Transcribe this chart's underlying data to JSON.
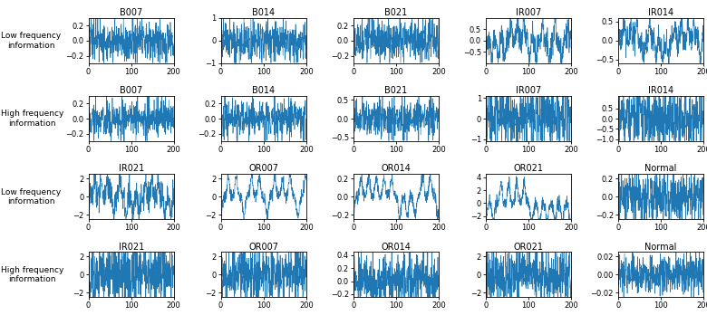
{
  "titles_row1": [
    "B007",
    "B014",
    "B021",
    "IR007",
    "IR014"
  ],
  "titles_row2": [
    "B007",
    "B014",
    "B021",
    "IR007",
    "IR014"
  ],
  "titles_row3": [
    "IR021",
    "OR007",
    "OR014",
    "OR021",
    "Normal"
  ],
  "titles_row4": [
    "IR021",
    "OR007",
    "OR014",
    "OR021",
    "Normal"
  ],
  "row_labels": [
    "Low frequency\ninformation",
    "High frequency\ninformation",
    "Low frequency\ninformation",
    "High frequency\ninformation"
  ],
  "ylims": [
    [
      [
        -0.3,
        0.3
      ],
      [
        -1.0,
        1.0
      ],
      [
        -0.3,
        0.3
      ],
      [
        -1.0,
        1.0
      ],
      [
        -0.6,
        0.6
      ]
    ],
    [
      [
        -0.3,
        0.3
      ],
      [
        -0.3,
        0.3
      ],
      [
        -0.6,
        0.6
      ],
      [
        -1.1,
        1.1
      ],
      [
        -1.1,
        1.1
      ]
    ],
    [
      [
        -2.5,
        2.5
      ],
      [
        -2.5,
        2.5
      ],
      [
        -0.25,
        0.25
      ],
      [
        -2.5,
        4.5
      ],
      [
        -0.25,
        0.25
      ]
    ],
    [
      [
        -2.5,
        2.5
      ],
      [
        -2.5,
        2.5
      ],
      [
        -0.25,
        0.45
      ],
      [
        -2.5,
        2.5
      ],
      [
        -0.025,
        0.025
      ]
    ]
  ],
  "yticks": [
    [
      [
        0.2,
        0,
        -0.2
      ],
      [
        1,
        0,
        -1
      ],
      [
        0.2,
        0,
        -0.2
      ],
      [
        0.5,
        0,
        -0.5
      ],
      [
        0.5,
        0,
        -0.5
      ]
    ],
    [
      [
        0.2,
        0,
        -0.2
      ],
      [
        0.2,
        0,
        -0.2
      ],
      [
        0.5,
        0,
        -0.5
      ],
      [
        1,
        0,
        -1
      ],
      [
        0.5,
        0,
        -0.5,
        -1.0
      ]
    ],
    [
      [
        2,
        0,
        -2
      ],
      [
        2,
        0,
        -2
      ],
      [
        0.2,
        0,
        -0.2
      ],
      [
        4,
        2,
        0,
        -2
      ],
      [
        0.2,
        0,
        -0.2
      ]
    ],
    [
      [
        2,
        0,
        -2
      ],
      [
        2,
        0,
        -2
      ],
      [
        0.4,
        0.2,
        0,
        -0.2
      ],
      [
        2,
        0,
        -2
      ],
      [
        0.02,
        0,
        -0.02
      ]
    ]
  ],
  "line_color": "#1f77b4",
  "n_points": 500,
  "bg_color": "#ffffff"
}
